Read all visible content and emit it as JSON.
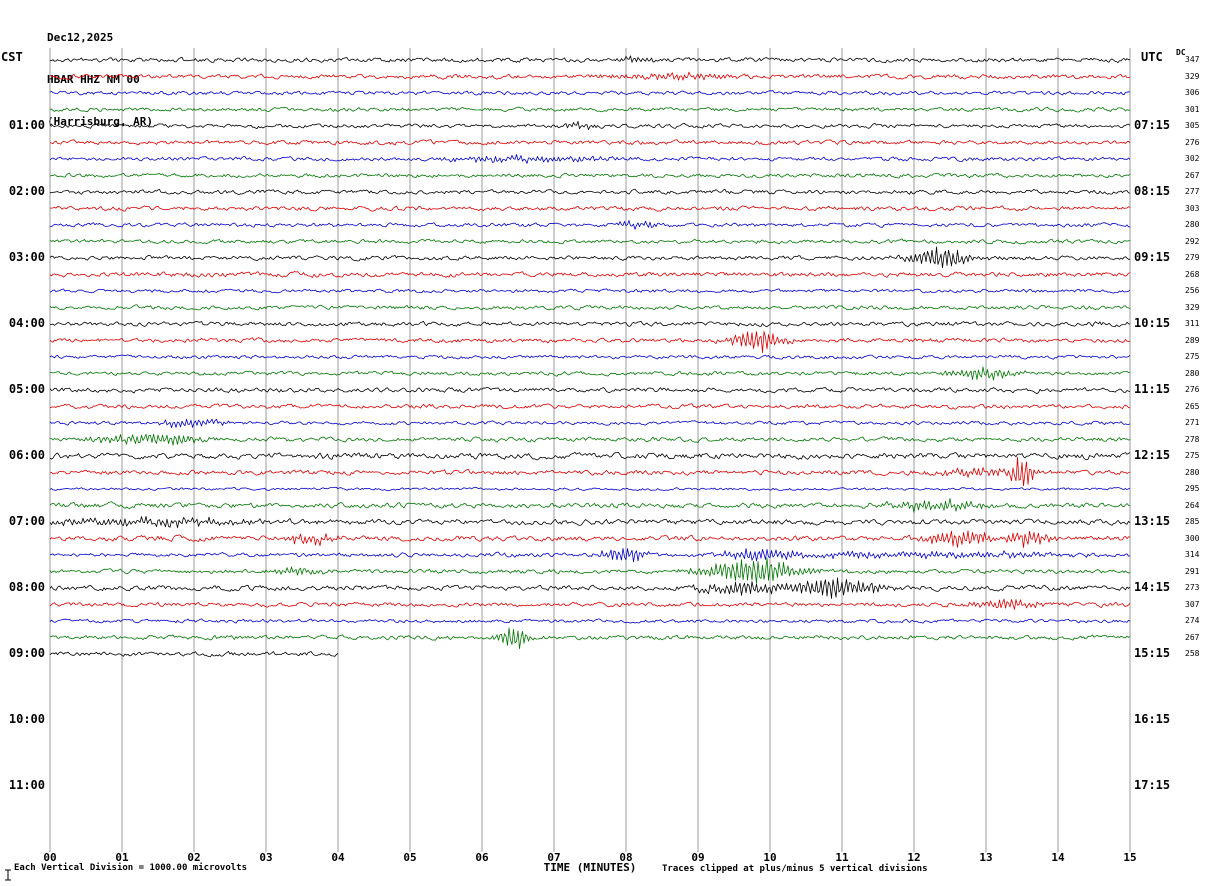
{
  "header": {
    "date": "Dec12,2025",
    "station": "HBAR HHZ NM 00",
    "location": "(Harrisburg, AR)"
  },
  "corner_labels": {
    "left_tz": "CST",
    "right_tz": "UTC",
    "dc": "DC"
  },
  "x_axis": {
    "title": "TIME (MINUTES)",
    "ticks": [
      "00",
      "01",
      "02",
      "03",
      "04",
      "05",
      "06",
      "07",
      "08",
      "09",
      "10",
      "11",
      "12",
      "13",
      "14",
      "15"
    ]
  },
  "footer": {
    "scale_note": "Each Vertical Division = 1000.00 microvolts",
    "clip_note": "Traces clipped at plus/minus 5 vertical divisions"
  },
  "palette": {
    "black": "#000000",
    "red": "#dd0000",
    "blue": "#0000cc",
    "green": "#007700",
    "grid": "#9b9b9b"
  },
  "chart_data": {
    "type": "line",
    "station": "HBAR HHZ NM 00",
    "x_range_minutes": [
      0,
      15
    ],
    "minutes_per_line": 15,
    "hour_rows": [
      {
        "cst": "01:00",
        "utc": "07:15"
      },
      {
        "cst": "02:00",
        "utc": "08:15"
      },
      {
        "cst": "03:00",
        "utc": "09:15"
      },
      {
        "cst": "04:00",
        "utc": "10:15"
      },
      {
        "cst": "05:00",
        "utc": "11:15"
      },
      {
        "cst": "06:00",
        "utc": "12:15"
      },
      {
        "cst": "07:00",
        "utc": "13:15"
      },
      {
        "cst": "08:00",
        "utc": "14:15"
      },
      {
        "cst": "09:00",
        "utc": "15:15"
      },
      {
        "cst": "10:00",
        "utc": "16:15"
      },
      {
        "cst": "11:00",
        "utc": "17:15"
      }
    ],
    "traces": [
      {
        "color": "black",
        "dc": 347,
        "noise": 2.2,
        "end_min": 15,
        "events": [
          {
            "m": 8.1,
            "amp": 3,
            "w": 0.2
          }
        ]
      },
      {
        "color": "red",
        "dc": 329,
        "noise": 2.2,
        "end_min": 15,
        "events": [
          {
            "m": 8.6,
            "amp": 3,
            "w": 0.6
          }
        ]
      },
      {
        "color": "blue",
        "dc": 306,
        "noise": 2.0,
        "end_min": 15,
        "events": []
      },
      {
        "color": "green",
        "dc": 301,
        "noise": 2.0,
        "end_min": 15,
        "events": []
      },
      {
        "color": "black",
        "dc": 305,
        "noise": 2.0,
        "end_min": 15,
        "events": [
          {
            "m": 7.35,
            "amp": 3.5,
            "w": 0.15
          }
        ]
      },
      {
        "color": "red",
        "dc": 276,
        "noise": 2.2,
        "end_min": 15,
        "events": []
      },
      {
        "color": "blue",
        "dc": 302,
        "noise": 2.0,
        "end_min": 15,
        "events": [
          {
            "m": 6.6,
            "amp": 3,
            "w": 0.8
          }
        ]
      },
      {
        "color": "green",
        "dc": 267,
        "noise": 2.0,
        "end_min": 15,
        "events": []
      },
      {
        "color": "black",
        "dc": 277,
        "noise": 2.2,
        "end_min": 15,
        "events": []
      },
      {
        "color": "red",
        "dc": 303,
        "noise": 2.2,
        "end_min": 15,
        "events": []
      },
      {
        "color": "blue",
        "dc": 280,
        "noise": 2.0,
        "end_min": 15,
        "events": [
          {
            "m": 8.2,
            "amp": 4,
            "w": 0.25
          }
        ]
      },
      {
        "color": "green",
        "dc": 292,
        "noise": 2.0,
        "end_min": 15,
        "events": []
      },
      {
        "color": "black",
        "dc": 279,
        "noise": 2.2,
        "end_min": 15,
        "events": [
          {
            "m": 12.35,
            "amp": 11,
            "w": 0.3
          }
        ]
      },
      {
        "color": "red",
        "dc": 268,
        "noise": 2.4,
        "end_min": 15,
        "events": []
      },
      {
        "color": "blue",
        "dc": 256,
        "noise": 1.8,
        "end_min": 15,
        "events": []
      },
      {
        "color": "green",
        "dc": 329,
        "noise": 2.0,
        "end_min": 15,
        "events": []
      },
      {
        "color": "black",
        "dc": 311,
        "noise": 2.2,
        "end_min": 15,
        "events": []
      },
      {
        "color": "red",
        "dc": 289,
        "noise": 2.2,
        "end_min": 15,
        "events": [
          {
            "m": 9.8,
            "amp": 13,
            "w": 0.25
          }
        ]
      },
      {
        "color": "blue",
        "dc": 275,
        "noise": 1.8,
        "end_min": 15,
        "events": []
      },
      {
        "color": "green",
        "dc": 280,
        "noise": 2.0,
        "end_min": 15,
        "events": [
          {
            "m": 12.95,
            "amp": 6,
            "w": 0.35
          }
        ]
      },
      {
        "color": "black",
        "dc": 276,
        "noise": 2.4,
        "end_min": 15,
        "events": []
      },
      {
        "color": "red",
        "dc": 265,
        "noise": 2.2,
        "end_min": 15,
        "events": []
      },
      {
        "color": "blue",
        "dc": 271,
        "noise": 1.8,
        "end_min": 15,
        "events": [
          {
            "m": 1.95,
            "amp": 5,
            "w": 0.3
          }
        ]
      },
      {
        "color": "green",
        "dc": 278,
        "noise": 2.2,
        "end_min": 15,
        "events": [
          {
            "m": 1.4,
            "amp": 6,
            "w": 0.5
          }
        ]
      },
      {
        "color": "black",
        "dc": 275,
        "noise": 3.0,
        "end_min": 15,
        "events": []
      },
      {
        "color": "red",
        "dc": 280,
        "noise": 2.4,
        "end_min": 15,
        "events": [
          {
            "m": 13.5,
            "amp": 20,
            "w": 0.1
          },
          {
            "m": 13.0,
            "amp": 4,
            "w": 0.5
          }
        ]
      },
      {
        "color": "blue",
        "dc": 295,
        "noise": 1.4,
        "end_min": 15,
        "events": []
      },
      {
        "color": "green",
        "dc": 264,
        "noise": 2.6,
        "end_min": 15,
        "events": [
          {
            "m": 12.3,
            "amp": 6,
            "w": 0.45
          }
        ]
      },
      {
        "color": "black",
        "dc": 285,
        "noise": 2.8,
        "end_min": 15,
        "events": [
          {
            "m": 1.5,
            "amp": 4,
            "w": 1.2
          }
        ]
      },
      {
        "color": "red",
        "dc": 300,
        "noise": 2.6,
        "end_min": 15,
        "events": [
          {
            "m": 3.6,
            "amp": 6,
            "w": 0.25
          },
          {
            "m": 12.65,
            "amp": 8,
            "w": 0.35
          },
          {
            "m": 13.55,
            "amp": 8,
            "w": 0.25
          }
        ]
      },
      {
        "color": "blue",
        "dc": 314,
        "noise": 2.0,
        "end_min": 15,
        "events": [
          {
            "m": 7.95,
            "amp": 9,
            "w": 0.2
          },
          {
            "m": 9.9,
            "amp": 6,
            "w": 0.35
          },
          {
            "m": 12.0,
            "amp": 3,
            "w": 1.5
          }
        ]
      },
      {
        "color": "green",
        "dc": 291,
        "noise": 2.2,
        "end_min": 15,
        "events": [
          {
            "m": 3.4,
            "amp": 4,
            "w": 0.25
          },
          {
            "m": 9.75,
            "amp": 15,
            "w": 0.45
          }
        ]
      },
      {
        "color": "black",
        "dc": 273,
        "noise": 2.6,
        "end_min": 15,
        "events": [
          {
            "m": 9.65,
            "amp": 7,
            "w": 0.45
          },
          {
            "m": 10.9,
            "amp": 11,
            "w": 0.4
          }
        ]
      },
      {
        "color": "red",
        "dc": 307,
        "noise": 2.2,
        "end_min": 15,
        "events": [
          {
            "m": 13.3,
            "amp": 5,
            "w": 0.35
          }
        ]
      },
      {
        "color": "blue",
        "dc": 274,
        "noise": 1.8,
        "end_min": 15,
        "events": []
      },
      {
        "color": "green",
        "dc": 267,
        "noise": 2.2,
        "end_min": 15,
        "events": [
          {
            "m": 6.45,
            "amp": 13,
            "w": 0.15
          }
        ]
      },
      {
        "color": "black",
        "dc": 258,
        "noise": 2.2,
        "end_min": 4,
        "events": []
      }
    ]
  }
}
